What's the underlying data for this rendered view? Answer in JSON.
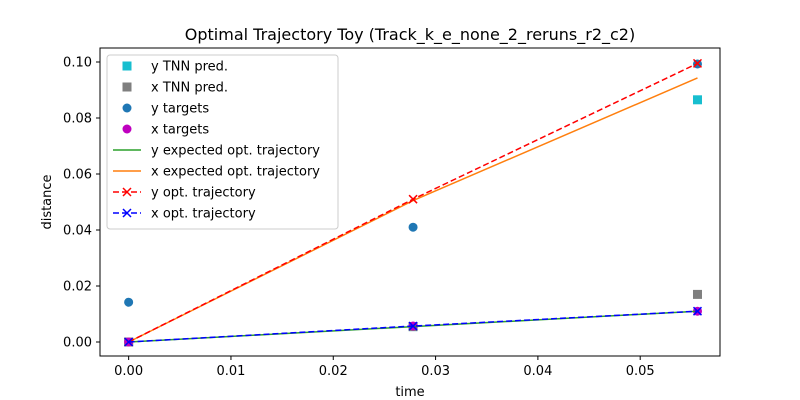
{
  "chart_data": {
    "type": "line",
    "title": "Optimal Trajectory Toy (Track_k_e_none_2_reruns_r2_c2)",
    "xlabel": "time",
    "ylabel": "distance",
    "xlim": [
      -0.0028,
      0.0578
    ],
    "ylim": [
      -0.005,
      0.105
    ],
    "xticks": [
      0.0,
      0.01,
      0.02,
      0.03,
      0.04,
      0.05
    ],
    "xtick_labels": [
      "0.00",
      "0.01",
      "0.02",
      "0.03",
      "0.04",
      "0.05"
    ],
    "yticks": [
      0.0,
      0.02,
      0.04,
      0.06,
      0.08,
      0.1
    ],
    "ytick_labels": [
      "0.00",
      "0.02",
      "0.04",
      "0.06",
      "0.08",
      "0.10"
    ],
    "grid": false,
    "legend_position": "upper-left",
    "series": [
      {
        "name": "y TNN pred.",
        "kind": "scatter",
        "marker": "square",
        "color": "#17becf",
        "x": [
          0.0,
          0.0278,
          0.0556
        ],
        "y": [
          0.0,
          0.0055,
          0.0865
        ]
      },
      {
        "name": "x TNN pred.",
        "kind": "scatter",
        "marker": "square",
        "color": "#7f7f7f",
        "x": [
          0.0,
          0.0278,
          0.0556
        ],
        "y": [
          0.0,
          0.0055,
          0.017
        ]
      },
      {
        "name": "y targets",
        "kind": "scatter",
        "marker": "circle",
        "color": "#1f77b4",
        "x": [
          0.0,
          0.0278,
          0.0556
        ],
        "y": [
          0.0142,
          0.041,
          0.0993
        ]
      },
      {
        "name": "x targets",
        "kind": "scatter",
        "marker": "circle",
        "color": "#bf00bf",
        "x": [
          0.0,
          0.0278,
          0.0556
        ],
        "y": [
          0.0,
          0.0057,
          0.011
        ]
      },
      {
        "name": "y expected opt. trajectory",
        "kind": "line",
        "dash": "solid",
        "color": "#2ca02c",
        "x": [
          0.0,
          0.0278,
          0.0556
        ],
        "y": [
          0.0,
          0.0055,
          0.011
        ]
      },
      {
        "name": "x expected opt. trajectory",
        "kind": "line",
        "dash": "solid",
        "color": "#ff7f0e",
        "x": [
          0.0,
          0.0278,
          0.0556
        ],
        "y": [
          0.0,
          0.0505,
          0.0943
        ]
      },
      {
        "name": "y opt. trajectory",
        "kind": "line",
        "dash": "dashed",
        "marker": "x",
        "color": "#ff0000",
        "x": [
          0.0,
          0.0278,
          0.0556
        ],
        "y": [
          0.0,
          0.051,
          0.0995
        ]
      },
      {
        "name": "x opt. trajectory",
        "kind": "line",
        "dash": "dashed",
        "marker": "x",
        "color": "#0000ff",
        "x": [
          0.0,
          0.0278,
          0.0556
        ],
        "y": [
          0.0,
          0.0057,
          0.011
        ]
      }
    ]
  }
}
